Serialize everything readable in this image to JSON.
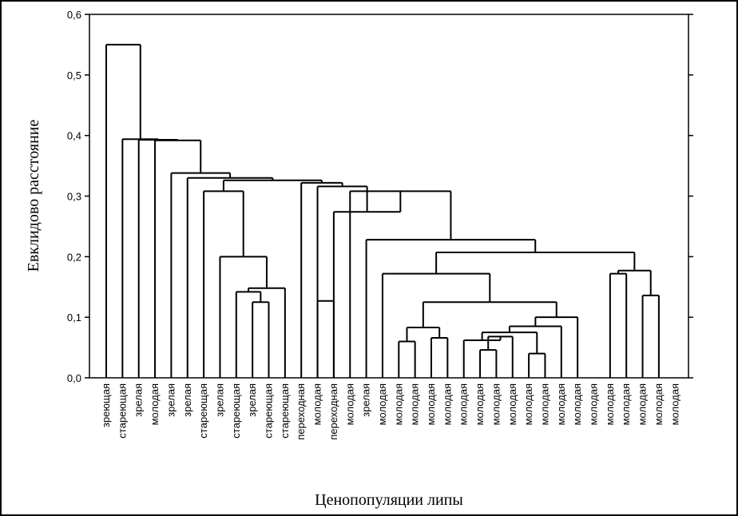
{
  "chart_data": {
    "type": "dendrogram",
    "title": "",
    "xlabel": "Ценопопуляции липы",
    "ylabel": "Евклидово расстояние",
    "ylim": [
      0,
      0.6
    ],
    "yticks": [
      "0,0",
      "0,1",
      "0,2",
      "0,3",
      "0,4",
      "0,5",
      "0,6"
    ],
    "ytick_values": [
      0,
      0.1,
      0.2,
      0.3,
      0.4,
      0.5,
      0.6
    ],
    "leaves": [
      "зреющая",
      "стареющая",
      "зрелая",
      "молодая",
      "зрелая",
      "зрелая",
      "стареющая",
      "зрелая",
      "стареющая",
      "зрелая",
      "стареющая",
      "стареющая",
      "переходная",
      "молодая",
      "переходная",
      "молодая",
      "зрелая",
      "молодая",
      "молодая",
      "молодая",
      "молодая",
      "молодая",
      "молодая",
      "молодая",
      "молодая",
      "молодая",
      "молодая",
      "молодая",
      "молодая",
      "молодая",
      "молодая",
      "молодая",
      "молодая",
      "молодая",
      "молодая",
      "молодая"
    ],
    "merges": [
      {
        "id": "m1",
        "a": 23,
        "b": 24,
        "height": 0.046
      },
      {
        "id": "m2",
        "a": 26,
        "b": 27,
        "height": 0.04
      },
      {
        "id": "m3",
        "a": 18,
        "b": 19,
        "height": 0.06
      },
      {
        "id": "m4",
        "a": 20,
        "b": 21,
        "height": 0.066
      },
      {
        "id": "m5",
        "a": "m1",
        "b": 25,
        "height": 0.068
      },
      {
        "id": "m6",
        "a": 22,
        "b": "m5",
        "height": 0.062
      },
      {
        "id": "m7",
        "a": "m6",
        "b": "m2",
        "height": 0.075
      },
      {
        "id": "m8",
        "a": 28,
        "b": "m7",
        "height": 0.085
      },
      {
        "id": "m9",
        "a": "m3",
        "b": "m4",
        "height": 0.083
      },
      {
        "id": "m10",
        "a": 29,
        "b": "m8",
        "height": 0.1
      },
      {
        "id": "m11",
        "a": "m9",
        "b": "m10",
        "height": 0.125
      },
      {
        "id": "m12",
        "a": 17,
        "b": "m11",
        "height": 0.172
      },
      {
        "id": "m13",
        "a": 31,
        "b": 32,
        "height": 0.172
      },
      {
        "id": "m14",
        "a": 33,
        "b": 34,
        "height": 0.136
      },
      {
        "id": "m15",
        "a": "m13",
        "b": "m14",
        "height": 0.177
      },
      {
        "id": "m16",
        "a": "m12",
        "b": "m15",
        "height": 0.207
      },
      {
        "id": "m17",
        "a": 16,
        "b": "m16",
        "height": 0.228
      },
      {
        "id": "m18",
        "a": 15,
        "b": "m17",
        "height": 0.308
      },
      {
        "id": "m19",
        "a": 9,
        "b": 10,
        "height": 0.125
      },
      {
        "id": "m20",
        "a": 8,
        "b": "m19",
        "height": 0.142
      },
      {
        "id": "m21",
        "a": "m20",
        "b": 11,
        "height": 0.148
      },
      {
        "id": "m22",
        "a": 7,
        "b": "m21",
        "height": 0.2
      },
      {
        "id": "m23",
        "a": 6,
        "b": "m22",
        "height": 0.308
      },
      {
        "id": "m24",
        "a": 13,
        "b": 14,
        "height": 0.127
      },
      {
        "id": "m25",
        "a": 14,
        "b": "m18",
        "height": 0.274
      },
      {
        "id": "m26",
        "a": 13,
        "b": "m25",
        "height": 0.316
      },
      {
        "id": "m27",
        "a": 12,
        "b": "m26",
        "height": 0.322
      },
      {
        "id": "m28",
        "a": "m23",
        "b": "m27",
        "height": 0.326
      },
      {
        "id": "m29",
        "a": 5,
        "b": "m28",
        "height": 0.33
      },
      {
        "id": "m30",
        "a": 4,
        "b": "m29",
        "height": 0.338
      },
      {
        "id": "m31",
        "a": 3,
        "b": "m30",
        "height": 0.392
      },
      {
        "id": "m32",
        "a": 2,
        "b": "m31",
        "height": 0.393
      },
      {
        "id": "m33",
        "a": 1,
        "b": "m32",
        "height": 0.394
      },
      {
        "id": "m34",
        "a": 0,
        "b": "m33",
        "height": 0.55
      }
    ]
  }
}
